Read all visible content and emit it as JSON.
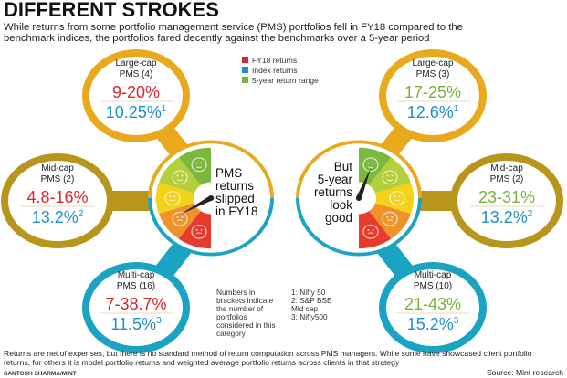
{
  "title": "DIFFERENT STROKES",
  "subtitle": [
    "While returns from some portfolio management service (PMS) portfolios fell in FY18 compared to the",
    "benchmark indices, the portfolios fared decently against the benchmarks over a 5-year period"
  ],
  "colors": {
    "fy18": "#d7262e",
    "index": "#1f8fc8",
    "five_year": "#7ab03c",
    "large_ring": "#e8a91c",
    "mid_ring": "#b8961c",
    "multi_ring": "#1ba3c4",
    "gauge": [
      "#7bb83e",
      "#b3cf3a",
      "#f2d21a",
      "#f0922a",
      "#e63c2e"
    ]
  },
  "legend": [
    {
      "label": "FY18 returns",
      "color": "#d7262e"
    },
    {
      "label": "Index returns",
      "color": "#1f8fc8"
    },
    {
      "label": "5-year return range",
      "color": "#7ab03c"
    }
  ],
  "left": {
    "gauge_text": [
      "PMS",
      "returns",
      "slipped",
      "in FY18"
    ],
    "large": {
      "name": "Large-cap",
      "count": "PMS (4)",
      "range": "9-20%",
      "index": "10.25%",
      "sup": "1"
    },
    "mid": {
      "name": "Mid-cap",
      "count": "PMS (2)",
      "range": "4.8-16%",
      "index": "13.2%",
      "sup": "2"
    },
    "multi": {
      "name": "Multi-cap",
      "count": "PMS (16)",
      "range": "7-38.7%",
      "index": "11.5%",
      "sup": "3"
    }
  },
  "right": {
    "gauge_text": [
      "But",
      "5-year",
      "returns",
      "look",
      "good"
    ],
    "large": {
      "name": "Large-cap",
      "count": "PMS (3)",
      "range": "17-25%",
      "index": "12.6%",
      "sup": "1"
    },
    "mid": {
      "name": "Mid-cap",
      "count": "PMS (2)",
      "range": "23-31%",
      "index": "13.2%",
      "sup": "2"
    },
    "multi": {
      "name": "Multi-cap",
      "count": "PMS (10)",
      "range": "21-43%",
      "index": "15.2%",
      "sup": "3"
    }
  },
  "notes": {
    "brackets": [
      "Numbers in",
      "brackets indicate",
      "the number of",
      "portfolios",
      "considered in this",
      "category"
    ],
    "indices": [
      "1: Nifty 50",
      "2: S&P BSE",
      "Mid cap",
      "3: Nifty500"
    ]
  },
  "footer": {
    "lines": [
      "Returns are net of expenses, but there is no standard method of return computation across PMS managers. While some have showcased client portfolio",
      "returns, for others it is model portfolio returns and weighted average portfolio returns across clients in that strategy"
    ],
    "credit": "SANTOSH SHARMA/MINT",
    "source": "Source: Mint research"
  }
}
